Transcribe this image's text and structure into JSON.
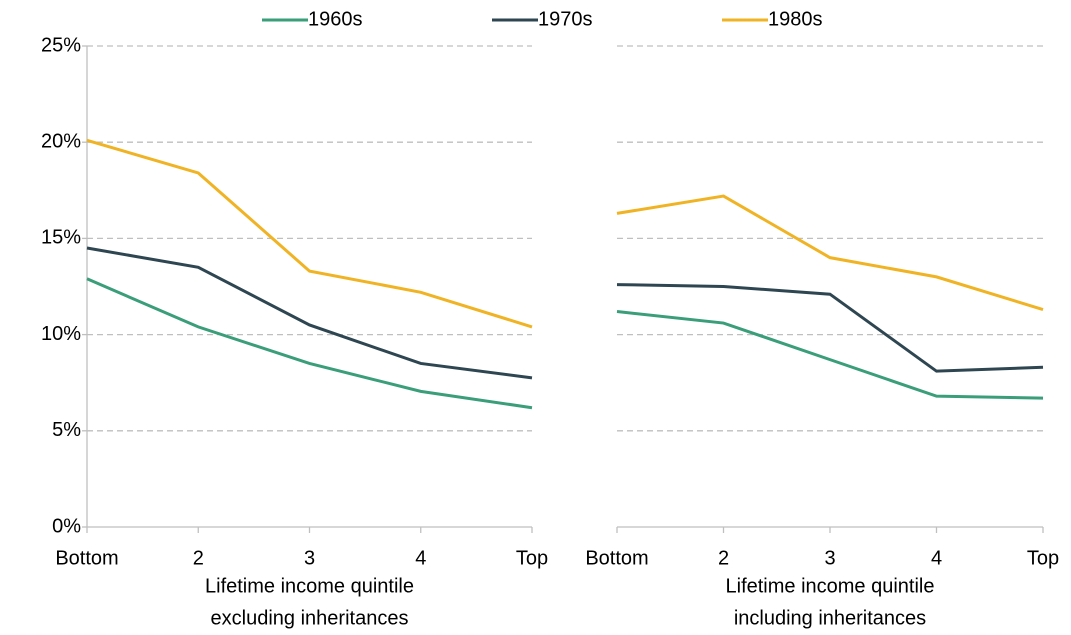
{
  "chart_data": [
    {
      "type": "line",
      "categories": [
        "Bottom",
        "2",
        "3",
        "4",
        "Top"
      ],
      "x_label": [
        "Lifetime income quintile",
        "excluding inheritances"
      ],
      "series": [
        {
          "name": "1960s",
          "color": "#3a9e7a",
          "values": [
            12.9,
            10.4,
            8.5,
            7.05,
            6.2
          ]
        },
        {
          "name": "1970s",
          "color": "#2e4651",
          "values": [
            14.5,
            13.5,
            10.5,
            8.5,
            7.75
          ]
        },
        {
          "name": "1980s",
          "color": "#f0b323",
          "values": [
            20.1,
            18.4,
            13.3,
            12.2,
            10.4
          ]
        }
      ],
      "ylim": [
        0,
        25
      ],
      "yticks": [
        {
          "value": 0,
          "label": "0%"
        },
        {
          "value": 5,
          "label": "5%"
        },
        {
          "value": 10,
          "label": "10%"
        },
        {
          "value": 15,
          "label": "15%"
        },
        {
          "value": 20,
          "label": "20%"
        },
        {
          "value": 25,
          "label": "25%"
        }
      ],
      "grid": true
    },
    {
      "type": "line",
      "categories": [
        "Bottom",
        "2",
        "3",
        "4",
        "Top"
      ],
      "x_label": [
        "Lifetime income quintile",
        "including inheritances"
      ],
      "series": [
        {
          "name": "1960s",
          "color": "#3a9e7a",
          "values": [
            11.2,
            10.6,
            8.7,
            6.8,
            6.7
          ]
        },
        {
          "name": "1970s",
          "color": "#2e4651",
          "values": [
            12.6,
            12.5,
            12.1,
            8.1,
            8.3
          ]
        },
        {
          "name": "1980s",
          "color": "#f0b323",
          "values": [
            16.3,
            17.2,
            14.0,
            13.0,
            11.3
          ]
        }
      ],
      "ylim": [
        0,
        25
      ],
      "yticks": [
        0,
        5,
        10,
        15,
        20,
        25
      ],
      "grid": true
    }
  ]
}
